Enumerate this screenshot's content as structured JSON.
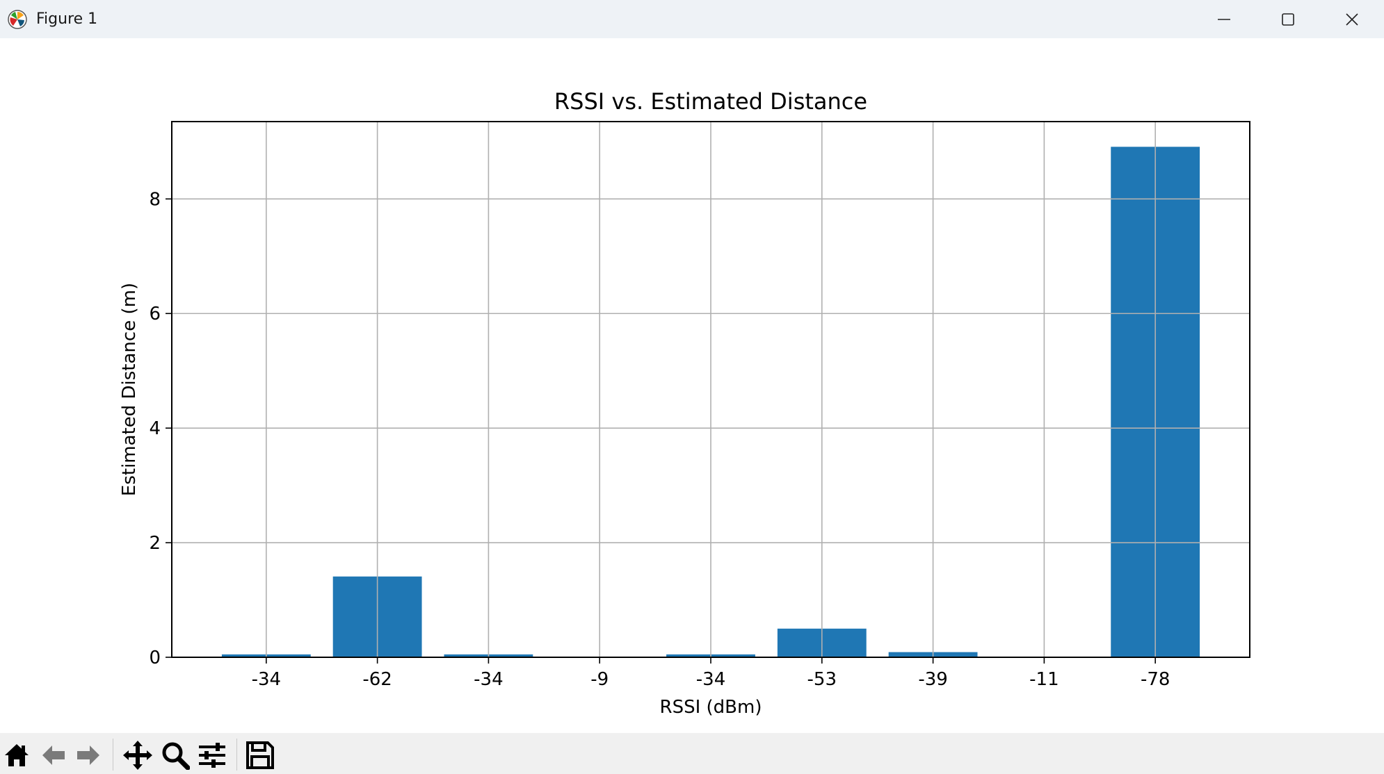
{
  "window": {
    "title": "Figure 1",
    "app_icon": "matplotlib-icon"
  },
  "toolbar": {
    "buttons": [
      {
        "name": "home-icon"
      },
      {
        "name": "back-arrow-icon"
      },
      {
        "name": "forward-arrow-icon"
      },
      {
        "name": "pan-icon"
      },
      {
        "name": "zoom-icon"
      },
      {
        "name": "configure-subplots-icon"
      },
      {
        "name": "save-icon"
      }
    ]
  },
  "chart_data": {
    "type": "bar",
    "title": "RSSI vs. Estimated Distance",
    "xlabel": "RSSI (dBm)",
    "ylabel": "Estimated Distance (m)",
    "categories": [
      "-34",
      "-62",
      "-34",
      "-9",
      "-34",
      "-53",
      "-39",
      "-11",
      "-78"
    ],
    "values": [
      0.05,
      1.41,
      0.05,
      0.005,
      0.05,
      0.5,
      0.09,
      0.01,
      8.91
    ],
    "ylim": [
      0,
      9.35
    ],
    "yticks": [
      0,
      2,
      4,
      6,
      8
    ],
    "grid": true,
    "bar_color": "#1f77b4"
  }
}
